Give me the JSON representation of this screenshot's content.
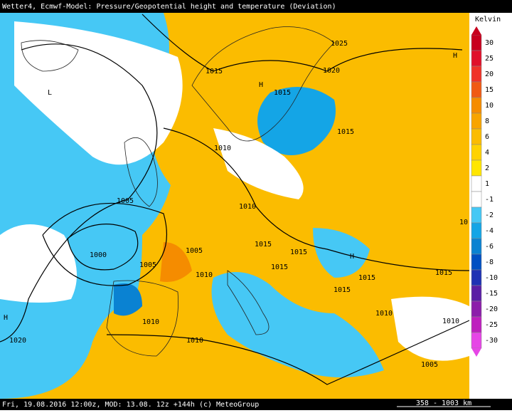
{
  "header": {
    "title": "Wetter4, Ecmwf-Model: Pressure/Geopotential height and temperature (Deviation)"
  },
  "legend": {
    "unit": "Kelvin",
    "entries": [
      {
        "label": "30",
        "color": "#c8001e"
      },
      {
        "label": "25",
        "color": "#e0102a"
      },
      {
        "label": "20",
        "color": "#f03228"
      },
      {
        "label": "15",
        "color": "#f05a14"
      },
      {
        "label": "10",
        "color": "#f58c00"
      },
      {
        "label": "8",
        "color": "#f8a400"
      },
      {
        "label": "6",
        "color": "#fbbc00"
      },
      {
        "label": "4",
        "color": "#ffd200"
      },
      {
        "label": "2",
        "color": "#ffe600"
      },
      {
        "label": "1",
        "color": "#ffffff"
      },
      {
        "label": "-1",
        "color": "#ffffff"
      },
      {
        "label": "-2",
        "color": "#46c8f5"
      },
      {
        "label": "-4",
        "color": "#14a5e6"
      },
      {
        "label": "-6",
        "color": "#0a82d2"
      },
      {
        "label": "-8",
        "color": "#0050c3"
      },
      {
        "label": "-10",
        "color": "#1e32b4"
      },
      {
        "label": "-15",
        "color": "#5a1ea5"
      },
      {
        "label": "-20",
        "color": "#8c1eaa"
      },
      {
        "label": "-25",
        "color": "#be1ebe"
      },
      {
        "label": "-30",
        "color": "#e646e6"
      }
    ]
  },
  "map": {
    "labels": [
      "1025",
      "1015",
      "1020",
      "H",
      "1015",
      "L",
      "1015",
      "1010",
      "1005",
      "1010",
      "1000",
      "1005",
      "1015",
      "1015",
      "H",
      "1005",
      "1010",
      "1015",
      "1015",
      "1015",
      "1015",
      "1010",
      "H",
      "1010",
      "1010",
      "1020",
      "1010",
      "1005",
      "H",
      "10"
    ]
  },
  "footer": {
    "text": "Fri, 19.08.2016 12:00z, MOD: 13.08. 12z +144h (c) MeteoGroup",
    "scale": "358 - 1003 km"
  }
}
